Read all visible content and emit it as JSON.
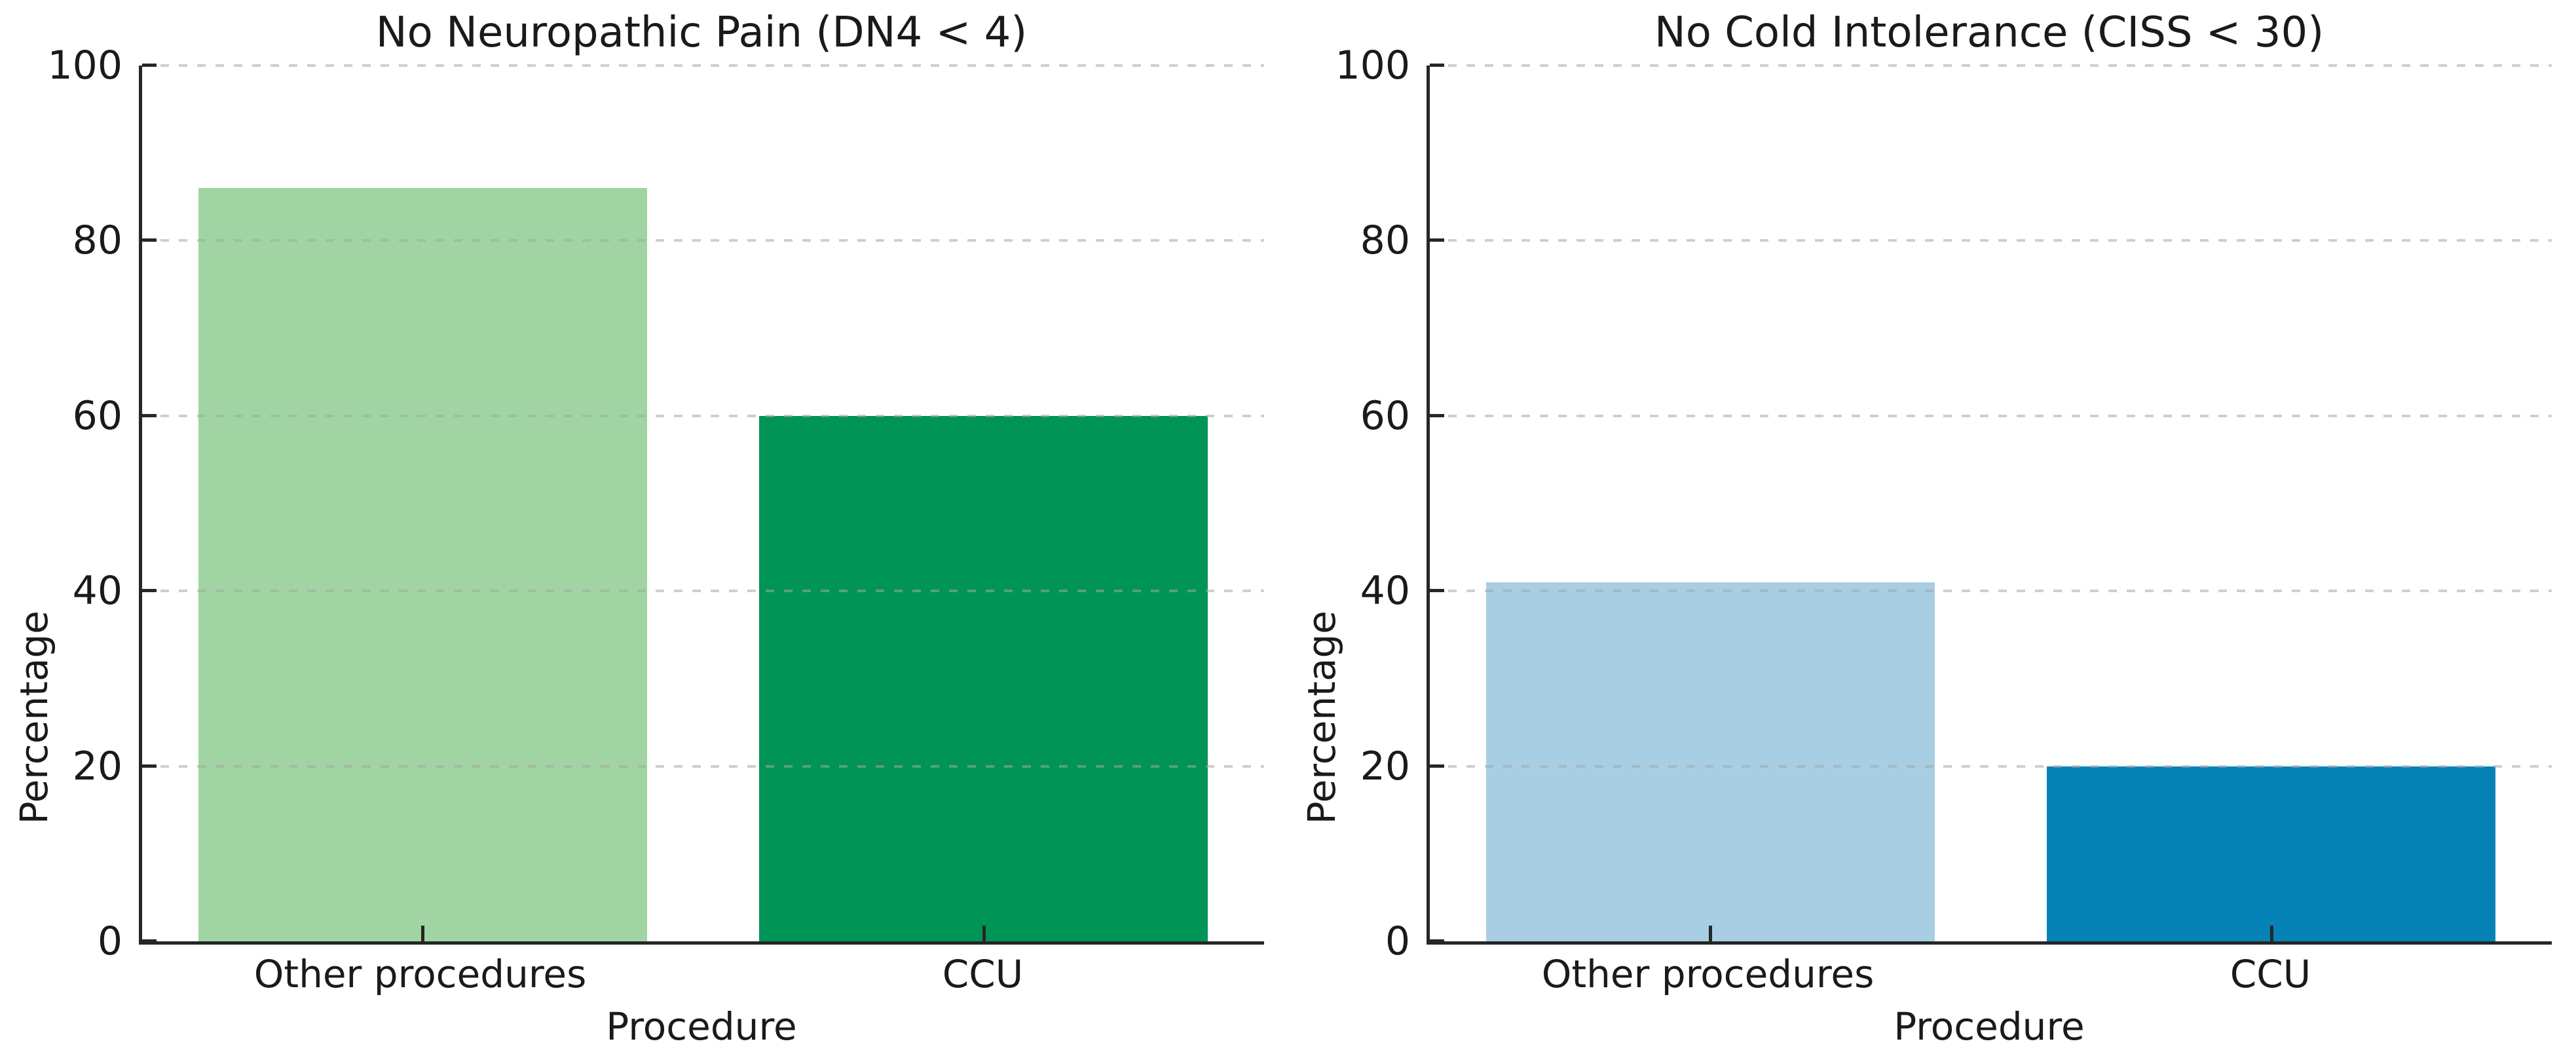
{
  "figure": {
    "background_color": "#ffffff",
    "text_color": "#1a1a1a",
    "spine_color": "#262626",
    "gridline_style": "dashed",
    "gridline_color": "#c9c9c9"
  },
  "chart_data": [
    {
      "type": "bar",
      "title": "No Neuropathic Pain (DN4 < 4)",
      "xlabel": "Procedure",
      "ylabel": "Percentage",
      "categories": [
        "Other procedures",
        "CCU"
      ],
      "values": [
        86,
        60
      ],
      "bar_colors": [
        "#a0d5a3",
        "#009457"
      ],
      "ylim": [
        0,
        100
      ],
      "yticks": [
        0,
        20,
        40,
        60,
        80,
        100
      ],
      "grid": "horizontal",
      "legend": "none"
    },
    {
      "type": "bar",
      "title": "No Cold Intolerance (CISS < 30)",
      "xlabel": "Procedure",
      "ylabel": "Percentage",
      "categories": [
        "Other procedures",
        "CCU"
      ],
      "values": [
        41,
        20
      ],
      "bar_colors": [
        "#a8cee4",
        "#0583b7"
      ],
      "ylim": [
        0,
        100
      ],
      "yticks": [
        0,
        20,
        40,
        60,
        80,
        100
      ],
      "grid": "horizontal",
      "legend": "none"
    }
  ]
}
